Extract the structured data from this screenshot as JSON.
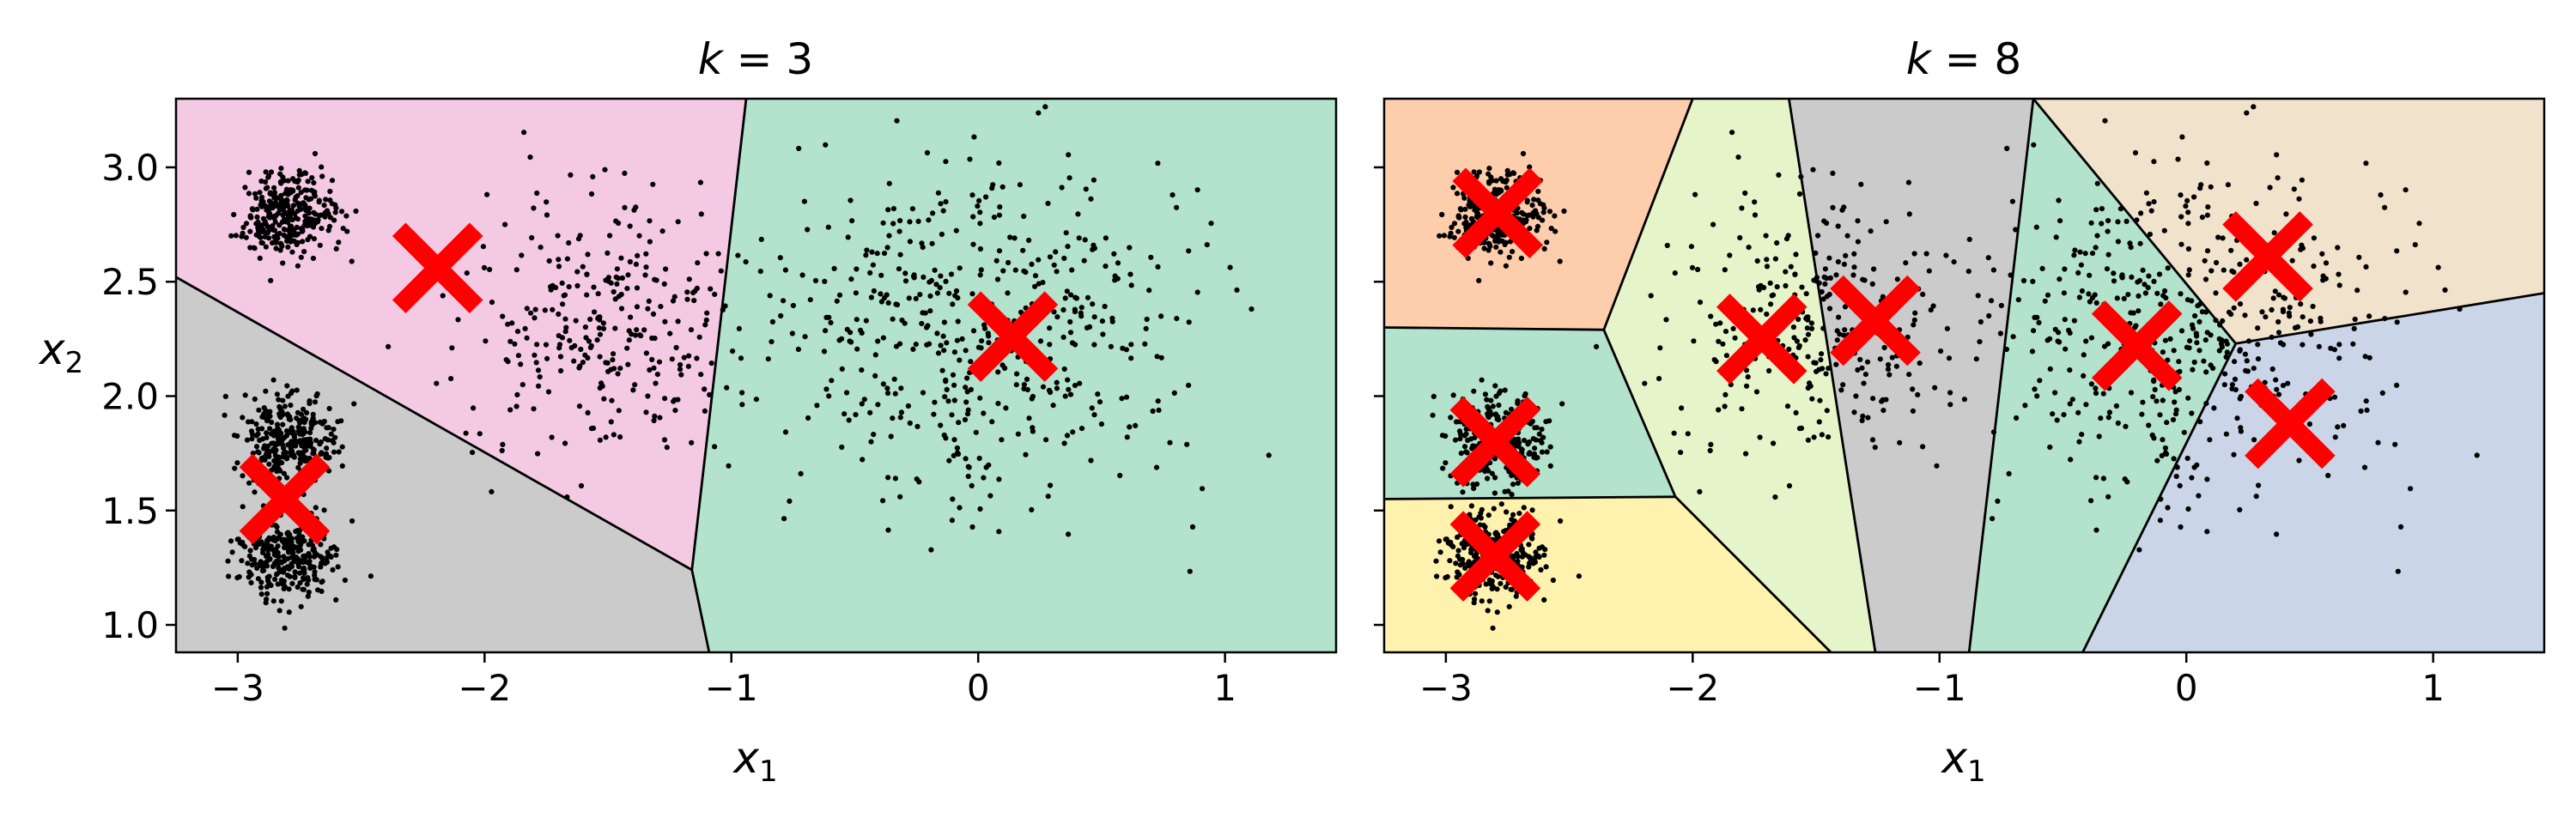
{
  "chart_data": [
    {
      "type": "scatter",
      "title": "k = 3",
      "title_parts": {
        "var": "k",
        "eq": " = ",
        "val": "3"
      },
      "xlabel": {
        "base": "x",
        "sub": "1"
      },
      "ylabel": {
        "base": "x",
        "sub": "2"
      },
      "xlim": [
        -3.25,
        1.45
      ],
      "ylim": [
        0.88,
        3.3
      ],
      "xticks": [
        {
          "v": -3,
          "label": "−3"
        },
        {
          "v": -2,
          "label": "−2"
        },
        {
          "v": -1,
          "label": "−1"
        },
        {
          "v": 0,
          "label": "0"
        },
        {
          "v": 1,
          "label": "1"
        }
      ],
      "yticks": [
        {
          "v": 1.0,
          "label": "1.0"
        },
        {
          "v": 1.5,
          "label": "1.5"
        },
        {
          "v": 2.0,
          "label": "2.0"
        },
        {
          "v": 2.5,
          "label": "2.5"
        },
        {
          "v": 3.0,
          "label": "3.0"
        }
      ],
      "show_ytick_labels": true,
      "grid": false,
      "regions": [
        {
          "color": "#f4c9e4",
          "polygon": [
            [
              -3.25,
              2.52
            ],
            [
              -1.16,
              1.24
            ],
            [
              -0.94,
              3.3
            ],
            [
              -3.25,
              3.3
            ]
          ]
        },
        {
          "color": "#cbcbcb",
          "polygon": [
            [
              -3.25,
              0.88
            ],
            [
              -1.09,
              0.88
            ],
            [
              -1.16,
              1.24
            ],
            [
              -3.25,
              2.52
            ]
          ]
        },
        {
          "color": "#b3e2cd",
          "polygon": [
            [
              -1.09,
              0.88
            ],
            [
              1.45,
              0.88
            ],
            [
              1.45,
              3.3
            ],
            [
              -0.94,
              3.3
            ],
            [
              -1.16,
              1.24
            ]
          ]
        }
      ],
      "boundaries": [
        [
          [
            -3.25,
            2.52
          ],
          [
            -1.16,
            1.24
          ]
        ],
        [
          [
            -1.16,
            1.24
          ],
          [
            -0.94,
            3.3
          ]
        ],
        [
          [
            -1.16,
            1.24
          ],
          [
            -1.09,
            0.88
          ]
        ]
      ],
      "centroids": [
        {
          "x": -2.19,
          "y": 2.56
        },
        {
          "x": -2.81,
          "y": 1.55
        },
        {
          "x": 0.14,
          "y": 2.26
        }
      ]
    },
    {
      "type": "scatter",
      "title": "k = 8",
      "title_parts": {
        "var": "k",
        "eq": " = ",
        "val": "8"
      },
      "xlabel": {
        "base": "x",
        "sub": "1"
      },
      "ylabel": {
        "base": "",
        "sub": ""
      },
      "xlim": [
        -3.25,
        1.45
      ],
      "ylim": [
        0.88,
        3.3
      ],
      "xticks": [
        {
          "v": -3,
          "label": "−3"
        },
        {
          "v": -2,
          "label": "−2"
        },
        {
          "v": -1,
          "label": "−1"
        },
        {
          "v": 0,
          "label": "0"
        },
        {
          "v": 1,
          "label": "1"
        }
      ],
      "yticks": [
        {
          "v": 1.0,
          "label": ""
        },
        {
          "v": 1.5,
          "label": ""
        },
        {
          "v": 2.0,
          "label": ""
        },
        {
          "v": 2.5,
          "label": ""
        },
        {
          "v": 3.0,
          "label": ""
        }
      ],
      "show_ytick_labels": false,
      "grid": false,
      "regions": [
        {
          "color": "#fdcdac",
          "polygon": [
            [
              -3.25,
              3.3
            ],
            [
              -2.0,
              3.3
            ],
            [
              -2.36,
              2.29
            ],
            [
              -3.25,
              2.3
            ]
          ]
        },
        {
          "color": "#b3e2cd",
          "polygon": [
            [
              -3.25,
              2.3
            ],
            [
              -2.36,
              2.29
            ],
            [
              -2.07,
              1.56
            ],
            [
              -3.25,
              1.55
            ]
          ]
        },
        {
          "color": "#fff2ae",
          "polygon": [
            [
              -3.25,
              1.55
            ],
            [
              -2.07,
              1.56
            ],
            [
              -1.44,
              0.88
            ],
            [
              -3.25,
              0.88
            ]
          ]
        },
        {
          "color": "#e6f5c9",
          "polygon": [
            [
              -2.0,
              3.3
            ],
            [
              -1.61,
              3.3
            ],
            [
              -1.26,
              0.88
            ],
            [
              -1.44,
              0.88
            ],
            [
              -2.07,
              1.56
            ],
            [
              -2.36,
              2.29
            ]
          ]
        },
        {
          "color": "#cbcbcb",
          "polygon": [
            [
              -1.61,
              3.3
            ],
            [
              -0.62,
              3.3
            ],
            [
              -0.88,
              0.88
            ],
            [
              -1.26,
              0.88
            ]
          ]
        },
        {
          "color": "#b3e2cd",
          "polygon": [
            [
              -0.62,
              3.3
            ],
            [
              0.2,
              2.23
            ],
            [
              -0.42,
              0.88
            ],
            [
              -0.88,
              0.88
            ]
          ]
        },
        {
          "color": "#f1e2cc",
          "polygon": [
            [
              -0.62,
              3.3
            ],
            [
              1.45,
              3.3
            ],
            [
              1.45,
              2.45
            ],
            [
              0.2,
              2.23
            ]
          ]
        },
        {
          "color": "#cbd5e8",
          "polygon": [
            [
              0.2,
              2.23
            ],
            [
              1.45,
              2.45
            ],
            [
              1.45,
              0.88
            ],
            [
              -0.42,
              0.88
            ]
          ]
        }
      ],
      "boundaries": [
        [
          [
            -3.25,
            2.3
          ],
          [
            -2.36,
            2.29
          ]
        ],
        [
          [
            -2.36,
            2.29
          ],
          [
            -2.0,
            3.3
          ]
        ],
        [
          [
            -2.36,
            2.29
          ],
          [
            -2.07,
            1.56
          ]
        ],
        [
          [
            -3.25,
            1.55
          ],
          [
            -2.07,
            1.56
          ]
        ],
        [
          [
            -2.07,
            1.56
          ],
          [
            -1.44,
            0.88
          ]
        ],
        [
          [
            -1.61,
            3.3
          ],
          [
            -1.26,
            0.88
          ]
        ],
        [
          [
            -0.62,
            3.3
          ],
          [
            -0.88,
            0.88
          ]
        ],
        [
          [
            -0.62,
            3.3
          ],
          [
            0.2,
            2.23
          ]
        ],
        [
          [
            0.2,
            2.23
          ],
          [
            1.45,
            2.45
          ]
        ],
        [
          [
            0.2,
            2.23
          ],
          [
            -0.42,
            0.88
          ]
        ]
      ],
      "centroids": [
        {
          "x": -2.79,
          "y": 2.8
        },
        {
          "x": -2.8,
          "y": 1.8
        },
        {
          "x": -2.8,
          "y": 1.3
        },
        {
          "x": -1.72,
          "y": 2.25
        },
        {
          "x": -1.26,
          "y": 2.33
        },
        {
          "x": -0.2,
          "y": 2.22
        },
        {
          "x": 0.33,
          "y": 2.61
        },
        {
          "x": 0.42,
          "y": 1.88
        }
      ]
    }
  ],
  "blobs": [
    {
      "cx": -2.8,
      "cy": 2.8,
      "sx": 0.1,
      "sy": 0.09,
      "n": 300
    },
    {
      "cx": -2.8,
      "cy": 1.8,
      "sx": 0.1,
      "sy": 0.1,
      "n": 300
    },
    {
      "cx": -2.8,
      "cy": 1.3,
      "sx": 0.1,
      "sy": 0.1,
      "n": 300
    },
    {
      "cx": -1.5,
      "cy": 2.3,
      "sx": 0.3,
      "sy": 0.3,
      "n": 300
    },
    {
      "cx": 0.0,
      "cy": 2.3,
      "sx": 0.4,
      "sy": 0.38,
      "n": 500
    }
  ],
  "styles": {
    "point_color": "#000000",
    "centroid_color": "#ff0000"
  }
}
